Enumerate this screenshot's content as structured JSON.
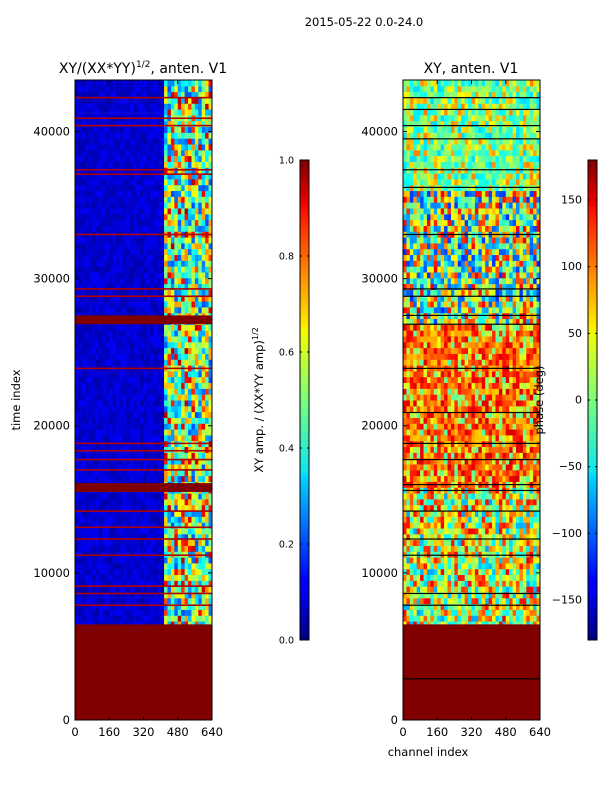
{
  "figure": {
    "suptitle": "2015-05-22 0.0-24.0",
    "shared_xlabel": "channel index"
  },
  "chart_data": [
    {
      "type": "heatmap",
      "title_main": "XY/(XX*YY)",
      "title_exp": "1/2",
      "title_suffix": ", anten. V1",
      "xlabel": "",
      "ylabel": "time index",
      "xlim": [
        0,
        640
      ],
      "ylim": [
        0,
        43500
      ],
      "xticks": [
        0,
        160,
        320,
        480,
        640
      ],
      "yticks": [
        0,
        10000,
        20000,
        30000,
        40000
      ],
      "colormap": "jet",
      "description_of_fields": "background = low amplitude region; bright band over channels ~410-640; saturated (max) regions as horizontal bands",
      "regions": [
        {
          "t0": 0,
          "t1": 6500,
          "c0": 0,
          "c1": 640,
          "value": 1.0
        },
        {
          "t0": 15500,
          "t1": 16100,
          "c0": 0,
          "c1": 640,
          "value": 1.0
        },
        {
          "t0": 26900,
          "t1": 27500,
          "c0": 0,
          "c1": 640,
          "value": 1.0
        }
      ],
      "colorbar": {
        "label_main": "XY amp. / (XX*YY amp)",
        "label_exp": "1/2",
        "range": [
          0.0,
          1.0
        ],
        "ticks": [
          "0.0",
          "0.2",
          "0.4",
          "0.6",
          "0.8",
          "1.0"
        ]
      }
    },
    {
      "type": "heatmap",
      "title": "XY, anten. V1",
      "xlabel": "channel index",
      "ylabel": "",
      "xlim": [
        0,
        640
      ],
      "ylim": [
        0,
        43500
      ],
      "xticks": [
        0,
        160,
        320,
        480,
        640
      ],
      "yticks": [
        0,
        10000,
        20000,
        30000,
        40000
      ],
      "colormap": "jet",
      "regions": [
        {
          "t0": 0,
          "t1": 6500,
          "c0": 0,
          "c1": 640,
          "value": 180
        }
      ],
      "colorbar": {
        "label": "phase (deg)",
        "range": [
          -180,
          180
        ],
        "ticks": [
          "−150",
          "−100",
          "−50",
          "0",
          "50",
          "100",
          "150"
        ]
      }
    }
  ]
}
